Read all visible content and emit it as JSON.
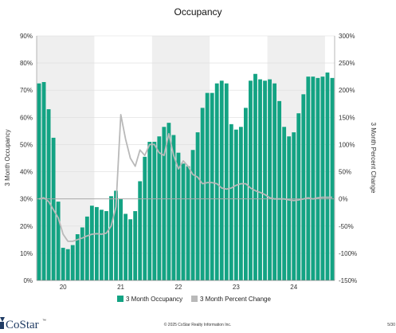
{
  "chart_data": {
    "type": "bar",
    "title": "Occupancy",
    "ylabel": "3 Month Occupancy",
    "y2label": "3 Month Percent Change",
    "ylim": [
      0,
      90
    ],
    "y2lim": [
      -150,
      300
    ],
    "y_ticks": [
      "0%",
      "10%",
      "20%",
      "30%",
      "40%",
      "50%",
      "60%",
      "70%",
      "80%",
      "90%"
    ],
    "y2_ticks": [
      "-150%",
      "-100%",
      "-50%",
      "0%",
      "50%",
      "100%",
      "150%",
      "200%",
      "250%",
      "300%"
    ],
    "x_tick_labels": [
      "20",
      "21",
      "22",
      "23",
      "24"
    ],
    "x_tick_month_index": [
      5,
      17,
      29,
      41,
      53
    ],
    "shaded_year_month_ranges": [
      [
        0,
        12
      ],
      [
        24,
        36
      ],
      [
        48,
        60
      ]
    ],
    "series": [
      {
        "name": "3 Month Occupancy",
        "kind": "bar",
        "color": "#13a383",
        "values": [
          72.5,
          73,
          63,
          52.5,
          29,
          12,
          11.5,
          13,
          17,
          19.5,
          23.5,
          27.5,
          27,
          26,
          25.5,
          31,
          33,
          30,
          24.5,
          22.5,
          25.5,
          36.5,
          45.5,
          51,
          51,
          53,
          56.5,
          58,
          53.5,
          47,
          43,
          42,
          48,
          54.5,
          63.5,
          69,
          69,
          72.5,
          73.5,
          72.5,
          57.5,
          55.5,
          56.5,
          63.5,
          73.5,
          76,
          74,
          73.5,
          74,
          72.5,
          66,
          56.5,
          53,
          54.5,
          61.5,
          68.5,
          75,
          75,
          74.5,
          75,
          76.5,
          74.5
        ]
      },
      {
        "name": "3 Month Percent Change",
        "kind": "line",
        "color": "#b9b9b9",
        "values": [
          0,
          2,
          -5,
          -20,
          -35,
          -65,
          -78,
          -78,
          -75,
          -72,
          -68,
          -65,
          -64,
          -65,
          -63,
          -50,
          -15,
          155,
          110,
          75,
          60,
          90,
          80,
          100,
          100,
          85,
          80,
          120,
          80,
          55,
          70,
          60,
          45,
          40,
          28,
          30,
          30,
          28,
          20,
          18,
          20,
          25,
          28,
          28,
          20,
          15,
          12,
          8,
          2,
          0,
          0,
          0,
          -2,
          -3,
          -2,
          0,
          2,
          0,
          2,
          3,
          3,
          3
        ]
      }
    ],
    "legend_position": "bottom",
    "grid": true
  },
  "footer": {
    "copyright": "© 2025 CoStar Realty Information Inc.",
    "page_number": "5/30",
    "logo_text": "CoStar",
    "logo_tm": "™"
  }
}
